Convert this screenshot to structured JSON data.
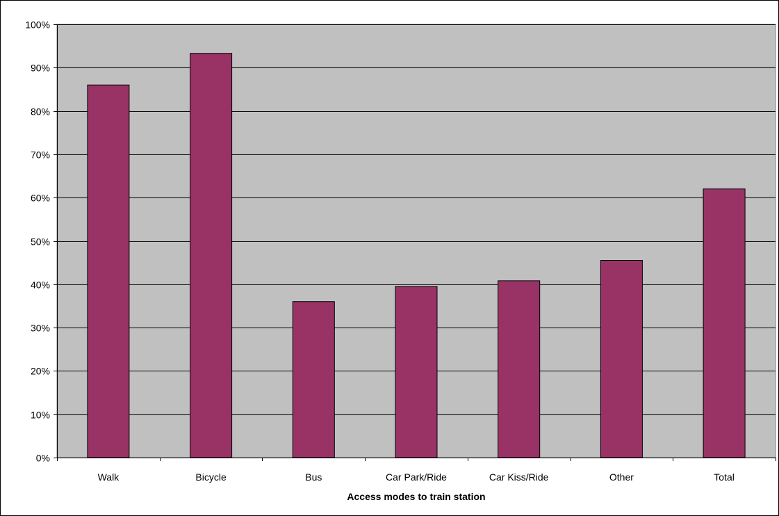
{
  "chart_data": {
    "type": "bar",
    "title": "",
    "xlabel": "Access modes to train station",
    "ylabel": "",
    "categories": [
      "Walk",
      "Bicycle",
      "Bus",
      "Car Park/Ride",
      "Car Kiss/Ride",
      "Other",
      "Total"
    ],
    "values": [
      86,
      93.3,
      36,
      39.5,
      40.8,
      45.5,
      62
    ],
    "ylim": [
      0,
      100
    ],
    "yticks": [
      0,
      10,
      20,
      30,
      40,
      50,
      60,
      70,
      80,
      90,
      100
    ],
    "ytick_labels": [
      "0%",
      "10%",
      "20%",
      "30%",
      "40%",
      "50%",
      "60%",
      "70%",
      "80%",
      "90%",
      "100%"
    ],
    "grid": true,
    "legend": "none",
    "colors": {
      "bar_fill": "#993366",
      "bar_stroke": "#000000",
      "plot_background": "#c0c0c0",
      "gridline": "#000000"
    }
  }
}
